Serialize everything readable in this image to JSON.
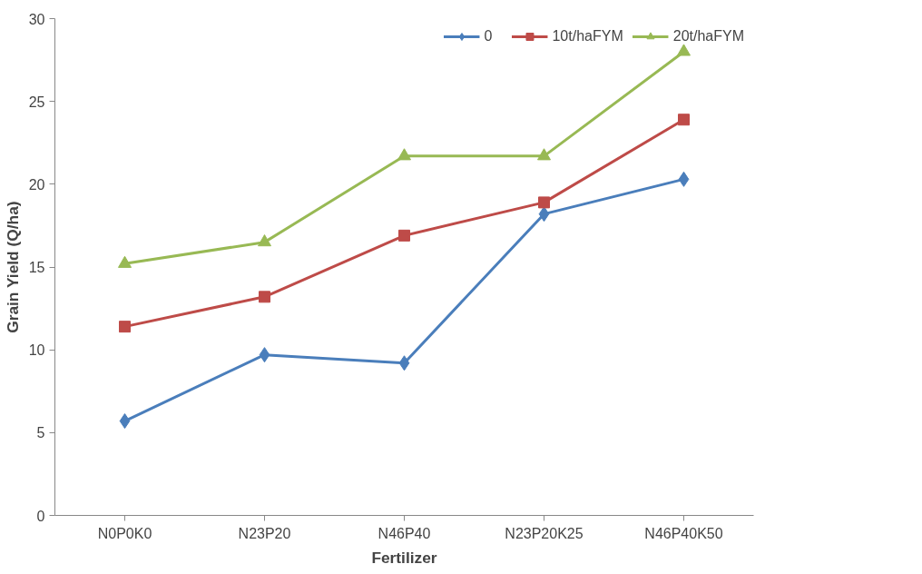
{
  "chart_data": {
    "type": "line",
    "xlabel": "Fertilizer",
    "ylabel": "Grain Yield (Q/ha)",
    "categories": [
      "N0P0K0",
      "N23P20",
      "N46P40",
      "N23P20K25",
      "N46P40K50"
    ],
    "series": [
      {
        "name": "0",
        "color": "#4a7ebb",
        "marker": "diamond",
        "values": [
          5.7,
          9.7,
          9.2,
          18.2,
          20.3
        ]
      },
      {
        "name": "10t/haFYM",
        "color": "#be4b48",
        "marker": "square",
        "values": [
          11.4,
          13.2,
          16.9,
          18.9,
          23.9
        ]
      },
      {
        "name": "20t/haFYM",
        "color": "#98b954",
        "marker": "triangle",
        "values": [
          15.2,
          16.5,
          21.7,
          21.7,
          28.0
        ]
      }
    ],
    "ylim": [
      0,
      30
    ],
    "yticks": [
      0,
      5,
      10,
      15,
      20,
      25,
      30
    ],
    "grid": false,
    "legend": "top right",
    "line_style": "solid"
  }
}
